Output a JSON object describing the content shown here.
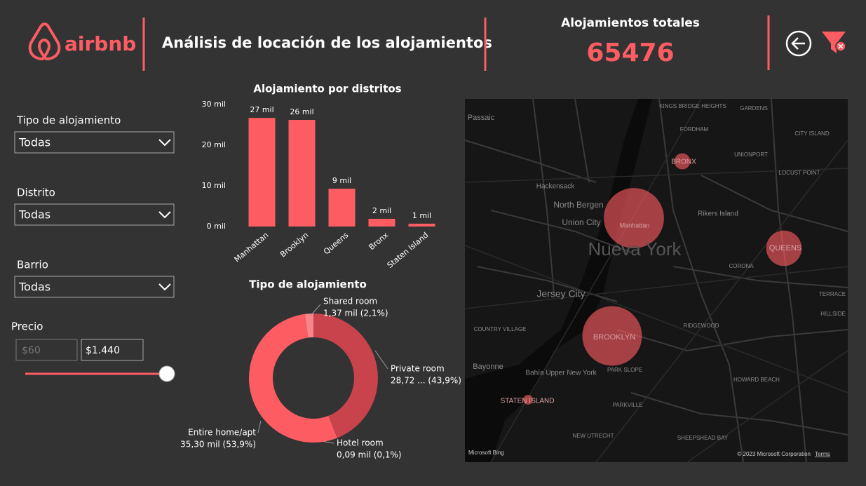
{
  "header": {
    "logo": "airbnb",
    "title": "Análisis de locación de los alojamientos",
    "kpi_label": "Alojamientos totales",
    "kpi_value": "65476"
  },
  "filters": [
    {
      "label": "Tipo de alojamiento",
      "value": "Todas"
    },
    {
      "label": "Distrito",
      "value": "Todas"
    },
    {
      "label": "Barrio",
      "value": "Todas"
    }
  ],
  "price": {
    "label": "Precio",
    "min": "$60",
    "max": "$1.440"
  },
  "charts": [
    {
      "type": "bar",
      "title": "Alojamiento por distritos",
      "categories": [
        "Manhattan",
        "Brooklyn",
        "Queens",
        "Bronx",
        "Staten Island"
      ],
      "values": [
        26.7,
        26.2,
        9.3,
        1.9,
        0.7
      ],
      "value_labels": [
        "27 mil",
        "26 mil",
        "9 mil",
        "2 mil",
        "1 mil"
      ],
      "color": "#fd5c63",
      "ylim": [
        0,
        30
      ],
      "yticks": [
        {
          "value": 0,
          "label": "0 mil"
        },
        {
          "value": 10,
          "label": "10 mil"
        },
        {
          "value": 20,
          "label": "20 mil"
        },
        {
          "value": 30,
          "label": "30 mil"
        }
      ]
    },
    {
      "type": "donut",
      "title": "Tipo de alojamiento",
      "categories": [
        "Private room",
        "Hotel room",
        "Entire home/apt",
        "Shared room"
      ],
      "values": [
        28.72,
        0.09,
        35.3,
        1.37
      ],
      "value_labels": [
        "28,72 ... (43,9%)",
        "0,09 mil (0,1%)",
        "35,30 mil (53,9%)",
        "1,37 mil (2,1%)"
      ],
      "colors": [
        "#c8434b",
        "#c8434b",
        "#fd5c63",
        "#f7868b"
      ]
    }
  ],
  "map": {
    "labels": [
      "Passaic",
      "KINGS BRIDGE HEIGHTS",
      "FORDHAM",
      "GARDENS",
      "CITY ISLAND",
      "UNIONPORT",
      "LOCUST POINT",
      "Hackensack",
      "North Bergen",
      "Union City",
      "Rikers Island",
      "Nueva York",
      "CORONA",
      "Jersey City",
      "TERRACE",
      "HILLSIDE",
      "RIDGEWOOD",
      "COUNTRY VILLAGE",
      "Bayonne",
      "Bahía Upper New York",
      "PARK SLOPE",
      "HOWARD BEACH",
      "PARKVILLE",
      "NEW UTRECHT",
      "SHEEPSHEAD BAY",
      "Manhattan",
      "BROOKLYN",
      "QUEENS",
      "BRONX",
      "STATEN ISLAND"
    ],
    "credit": "Microsoft Bing",
    "copyright": "© 2023 Microsoft Corporation",
    "terms": "Terms"
  }
}
